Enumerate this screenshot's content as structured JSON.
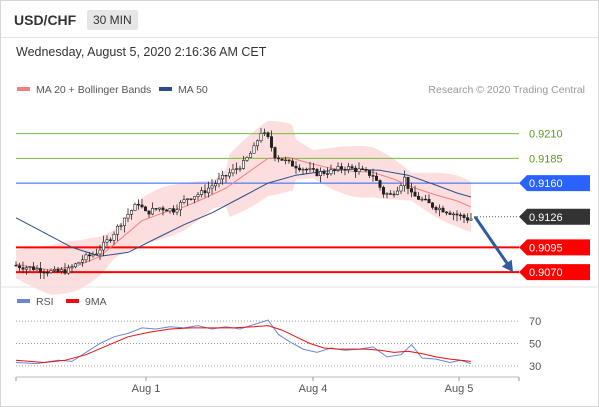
{
  "header": {
    "pair": "USD/CHF",
    "timeframe": "30 MIN"
  },
  "timestamp": "Wednesday, August 5, 2020 2:16:36 AM CET",
  "legend": {
    "items": [
      {
        "label": "MA 20 + Bollinger Bands",
        "color": "#f08080"
      },
      {
        "label": "MA 50",
        "color": "#2a4e8c"
      }
    ],
    "credit": "Research © 2020 Trading Central"
  },
  "rsi_legend": {
    "items": [
      {
        "label": "RSI",
        "color": "#6b86d6"
      },
      {
        "label": "9MA",
        "color": "#e81010"
      }
    ]
  },
  "chart_data": [
    {
      "type": "candlestick",
      "title": "USD/CHF 30 MIN",
      "x_ticks": [
        "Aug 1",
        "Aug 4",
        "Aug 5"
      ],
      "ylim": [
        0.9055,
        0.924
      ],
      "current_price": 0.9126,
      "levels": [
        {
          "value": 0.921,
          "label": "0.9210",
          "color": "#7cbb3a",
          "kind": "resistance"
        },
        {
          "value": 0.9185,
          "label": "0.9185",
          "color": "#7cbb3a",
          "kind": "resistance"
        },
        {
          "value": 0.916,
          "label": "0.9160",
          "color": "#2962ff",
          "kind": "pivot"
        },
        {
          "value": 0.9095,
          "label": "0.9095",
          "color": "#ff0000",
          "kind": "support"
        },
        {
          "value": 0.907,
          "label": "0.9070",
          "color": "#ff0000",
          "kind": "support"
        }
      ],
      "price_path": [
        [
          0,
          0.9077
        ],
        [
          6,
          0.9074
        ],
        [
          12,
          0.907
        ],
        [
          16,
          0.9072
        ],
        [
          20,
          0.9083
        ],
        [
          24,
          0.909
        ],
        [
          28,
          0.9105
        ],
        [
          32,
          0.9125
        ],
        [
          36,
          0.914
        ],
        [
          38,
          0.913
        ],
        [
          42,
          0.9135
        ],
        [
          46,
          0.9133
        ],
        [
          50,
          0.9145
        ],
        [
          54,
          0.915
        ],
        [
          58,
          0.916
        ],
        [
          62,
          0.917
        ],
        [
          66,
          0.918
        ],
        [
          69,
          0.9195
        ],
        [
          71,
          0.9212
        ],
        [
          73,
          0.9205
        ],
        [
          75,
          0.9188
        ],
        [
          79,
          0.918
        ],
        [
          83,
          0.9175
        ],
        [
          87,
          0.917
        ],
        [
          91,
          0.9172
        ],
        [
          95,
          0.9176
        ],
        [
          99,
          0.9173
        ],
        [
          103,
          0.9168
        ],
        [
          106,
          0.915
        ],
        [
          108,
          0.9148
        ],
        [
          110,
          0.9155
        ],
        [
          112,
          0.9165
        ],
        [
          114,
          0.9148
        ],
        [
          117,
          0.9143
        ],
        [
          120,
          0.9137
        ],
        [
          124,
          0.9132
        ],
        [
          127,
          0.9128
        ],
        [
          130,
          0.9124
        ]
      ],
      "n_candles": 131,
      "ma20": [
        [
          0,
          0.9078
        ],
        [
          10,
          0.9072
        ],
        [
          18,
          0.9077
        ],
        [
          24,
          0.9086
        ],
        [
          30,
          0.9104
        ],
        [
          36,
          0.9122
        ],
        [
          42,
          0.913
        ],
        [
          48,
          0.9136
        ],
        [
          54,
          0.9145
        ],
        [
          60,
          0.9155
        ],
        [
          66,
          0.917
        ],
        [
          72,
          0.9185
        ],
        [
          78,
          0.9186
        ],
        [
          84,
          0.918
        ],
        [
          90,
          0.9175
        ],
        [
          96,
          0.9172
        ],
        [
          102,
          0.9171
        ],
        [
          108,
          0.9164
        ],
        [
          114,
          0.9155
        ],
        [
          120,
          0.9148
        ],
        [
          126,
          0.9142
        ],
        [
          130,
          0.9136
        ]
      ],
      "ma50": [
        [
          0,
          0.9125
        ],
        [
          8,
          0.911
        ],
        [
          16,
          0.9095
        ],
        [
          24,
          0.9086
        ],
        [
          32,
          0.909
        ],
        [
          40,
          0.9104
        ],
        [
          48,
          0.9118
        ],
        [
          56,
          0.913
        ],
        [
          64,
          0.9145
        ],
        [
          72,
          0.916
        ],
        [
          80,
          0.9168
        ],
        [
          88,
          0.9172
        ],
        [
          96,
          0.9174
        ],
        [
          104,
          0.9173
        ],
        [
          112,
          0.9168
        ],
        [
          120,
          0.9158
        ],
        [
          126,
          0.915
        ],
        [
          130,
          0.9146
        ]
      ],
      "forecast_arrow": {
        "from": [
          130,
          0.9126
        ],
        "to": [
          142,
          0.907
        ]
      }
    },
    {
      "type": "line",
      "title": "RSI",
      "ylim": [
        20,
        80
      ],
      "y_ticks": [
        70,
        50,
        30
      ],
      "series": [
        {
          "name": "RSI",
          "values": [
            [
              0,
              33
            ],
            [
              6,
              32
            ],
            [
              12,
              35
            ],
            [
              16,
              34
            ],
            [
              20,
              42
            ],
            [
              24,
              50
            ],
            [
              28,
              56
            ],
            [
              32,
              59
            ],
            [
              36,
              64
            ],
            [
              40,
              63
            ],
            [
              44,
              65
            ],
            [
              48,
              64
            ],
            [
              52,
              66
            ],
            [
              56,
              63
            ],
            [
              60,
              65
            ],
            [
              64,
              63
            ],
            [
              68,
              67
            ],
            [
              72,
              71
            ],
            [
              75,
              58
            ],
            [
              78,
              52
            ],
            [
              82,
              45
            ],
            [
              86,
              42
            ],
            [
              90,
              46
            ],
            [
              94,
              44
            ],
            [
              98,
              45
            ],
            [
              102,
              47
            ],
            [
              106,
              38
            ],
            [
              110,
              40
            ],
            [
              113,
              49
            ],
            [
              116,
              37
            ],
            [
              120,
              36
            ],
            [
              124,
              33
            ],
            [
              127,
              35
            ],
            [
              130,
              32
            ]
          ]
        },
        {
          "name": "9MA",
          "values": [
            [
              0,
              35
            ],
            [
              8,
              33
            ],
            [
              14,
              35
            ],
            [
              20,
              40
            ],
            [
              26,
              48
            ],
            [
              32,
              56
            ],
            [
              38,
              60
            ],
            [
              44,
              63
            ],
            [
              50,
              64
            ],
            [
              56,
              64
            ],
            [
              62,
              64
            ],
            [
              68,
              65
            ],
            [
              72,
              66
            ],
            [
              76,
              62
            ],
            [
              80,
              56
            ],
            [
              84,
              50
            ],
            [
              88,
              46
            ],
            [
              92,
              45
            ],
            [
              96,
              45
            ],
            [
              100,
              45
            ],
            [
              104,
              44
            ],
            [
              108,
              42
            ],
            [
              112,
              43
            ],
            [
              116,
              41
            ],
            [
              120,
              38
            ],
            [
              124,
              36
            ],
            [
              130,
              34
            ]
          ]
        }
      ]
    }
  ]
}
